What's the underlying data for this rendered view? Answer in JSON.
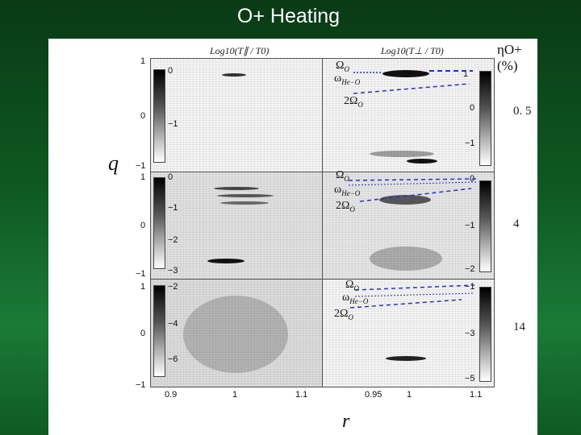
{
  "slide": {
    "title": "O+ Heating"
  },
  "figure": {
    "left_column_title": "Log10(T∥ / T0)",
    "right_column_title": "Log10(T⊥ / T0)",
    "eta_title": "ηO+(%)",
    "y_axis_label": "q",
    "x_axis_label": "r",
    "y_ticks": [
      "1",
      "0",
      "−1"
    ],
    "x_ticks_left": [
      "0.9",
      "1",
      "1.1"
    ],
    "x_ticks_right": [
      "0.95",
      "1",
      "1.1"
    ],
    "rows": [
      {
        "eta": "0. 5",
        "left_colorbar": [
          "0",
          "−1"
        ],
        "right_colorbar": [
          "1",
          "0",
          "−1"
        ]
      },
      {
        "eta": "4",
        "left_colorbar": [
          "0",
          "−1",
          "−2",
          "−3"
        ],
        "right_colorbar": [
          "0",
          "−1",
          "−2"
        ]
      },
      {
        "eta": "14",
        "left_colorbar": [
          "−2",
          "−4",
          "−6"
        ],
        "right_colorbar": [
          "−1",
          "−3",
          "−5"
        ]
      }
    ],
    "freq_labels": {
      "omega_o": "Ω",
      "omega_o_sub": "O",
      "omega_heo": "ω",
      "omega_heo_sub": "He−O",
      "two_omega": "2Ω",
      "two_omega_sub": "O"
    }
  }
}
